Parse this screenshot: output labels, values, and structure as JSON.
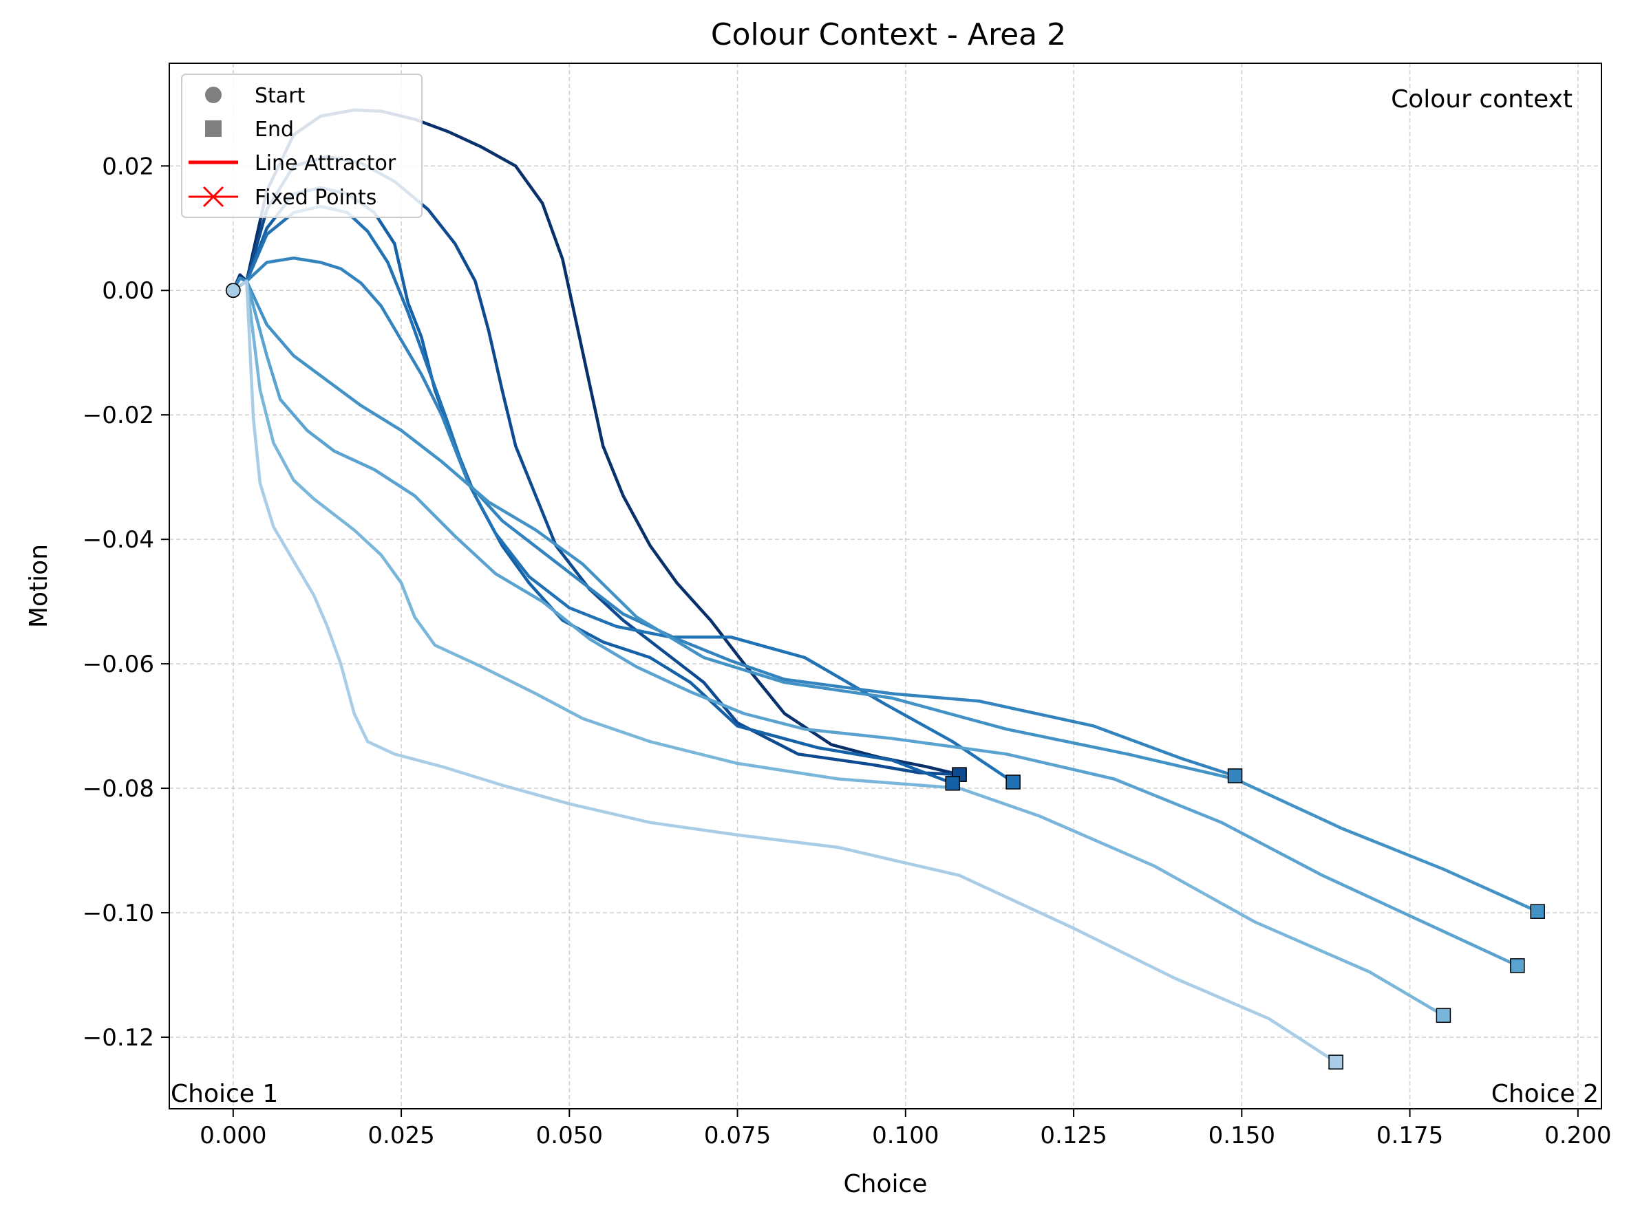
{
  "chart_data": {
    "type": "line",
    "title": "Colour Context - Area 2",
    "xlabel": "Choice",
    "ylabel": "Motion",
    "xlim": [
      -0.0095,
      0.2035
    ],
    "ylim": [
      -0.1315,
      0.0365
    ],
    "xticks": [
      0.0,
      0.025,
      0.05,
      0.075,
      0.1,
      0.125,
      0.15,
      0.175,
      0.2
    ],
    "xtick_labels": [
      "0.000",
      "0.025",
      "0.050",
      "0.075",
      "0.100",
      "0.125",
      "0.150",
      "0.175",
      "0.200"
    ],
    "yticks": [
      0.02,
      0.0,
      -0.02,
      -0.04,
      -0.06,
      -0.08,
      -0.1,
      -0.12
    ],
    "ytick_labels": [
      "0.02",
      "0.00",
      "−0.02",
      "−0.04",
      "−0.06",
      "−0.08",
      "−0.10",
      "−0.12"
    ],
    "grid": true,
    "legend": {
      "placement": "upper-left",
      "entries": [
        {
          "label": "Start",
          "marker": "circle",
          "color": "#808080"
        },
        {
          "label": "End",
          "marker": "square",
          "color": "#808080"
        },
        {
          "label": "Line Attractor",
          "marker": "line",
          "color": "#ff0000"
        },
        {
          "label": "Fixed Points",
          "marker": "x-line",
          "color": "#ff0000"
        }
      ]
    },
    "annotations": [
      {
        "text": "Colour context",
        "position": "top-right"
      },
      {
        "text": "Choice 1",
        "position": "bottom-left"
      },
      {
        "text": "Choice 2",
        "position": "bottom-right"
      }
    ],
    "series": [
      {
        "color": "#08306b",
        "points": [
          [
            0,
            0
          ],
          [
            0.001,
            0.0025
          ],
          [
            0.002,
            0.0015
          ],
          [
            0.005,
            0.016
          ],
          [
            0.009,
            0.025
          ],
          [
            0.013,
            0.028
          ],
          [
            0.018,
            0.029
          ],
          [
            0.022,
            0.0288
          ],
          [
            0.027,
            0.0275
          ],
          [
            0.032,
            0.0255
          ],
          [
            0.037,
            0.023
          ],
          [
            0.042,
            0.02
          ],
          [
            0.046,
            0.014
          ],
          [
            0.049,
            0.005
          ],
          [
            0.051,
            -0.005
          ],
          [
            0.053,
            -0.015
          ],
          [
            0.055,
            -0.025
          ],
          [
            0.058,
            -0.033
          ],
          [
            0.062,
            -0.041
          ],
          [
            0.066,
            -0.047
          ],
          [
            0.071,
            -0.053
          ],
          [
            0.076,
            -0.06
          ],
          [
            0.082,
            -0.068
          ],
          [
            0.089,
            -0.073
          ],
          [
            0.096,
            -0.075
          ],
          [
            0.103,
            -0.0765
          ],
          [
            0.108,
            -0.0778
          ]
        ]
      },
      {
        "color": "#0d4a8f",
        "points": [
          [
            0,
            0
          ],
          [
            0.001,
            0.002
          ],
          [
            0.002,
            0.0015
          ],
          [
            0.005,
            0.013
          ],
          [
            0.009,
            0.02
          ],
          [
            0.014,
            0.0215
          ],
          [
            0.019,
            0.0205
          ],
          [
            0.024,
            0.0175
          ],
          [
            0.029,
            0.013
          ],
          [
            0.033,
            0.0075
          ],
          [
            0.036,
            0.0015
          ],
          [
            0.038,
            -0.0065
          ],
          [
            0.04,
            -0.016
          ],
          [
            0.042,
            -0.025
          ],
          [
            0.045,
            -0.033
          ],
          [
            0.048,
            -0.041
          ],
          [
            0.053,
            -0.048
          ],
          [
            0.058,
            -0.053
          ],
          [
            0.064,
            -0.058
          ],
          [
            0.07,
            -0.063
          ],
          [
            0.075,
            -0.0695
          ],
          [
            0.084,
            -0.0745
          ],
          [
            0.095,
            -0.0762
          ],
          [
            0.102,
            -0.0775
          ],
          [
            0.108,
            -0.0778
          ]
        ]
      },
      {
        "color": "#1561a8",
        "points": [
          [
            0,
            0
          ],
          [
            0.001,
            0.002
          ],
          [
            0.002,
            0.0015
          ],
          [
            0.005,
            0.01
          ],
          [
            0.009,
            0.0155
          ],
          [
            0.013,
            0.0165
          ],
          [
            0.017,
            0.0155
          ],
          [
            0.021,
            0.0125
          ],
          [
            0.024,
            0.0075
          ],
          [
            0.026,
            -0.002
          ],
          [
            0.028,
            -0.0075
          ],
          [
            0.03,
            -0.016
          ],
          [
            0.033,
            -0.025
          ],
          [
            0.036,
            -0.033
          ],
          [
            0.04,
            -0.041
          ],
          [
            0.044,
            -0.047
          ],
          [
            0.049,
            -0.053
          ],
          [
            0.055,
            -0.0565
          ],
          [
            0.062,
            -0.059
          ],
          [
            0.068,
            -0.063
          ],
          [
            0.075,
            -0.07
          ],
          [
            0.087,
            -0.0735
          ],
          [
            0.098,
            -0.0755
          ],
          [
            0.107,
            -0.0792
          ]
        ]
      },
      {
        "color": "#2171b5",
        "points": [
          [
            0,
            0
          ],
          [
            0.001,
            0.002
          ],
          [
            0.002,
            0.0015
          ],
          [
            0.005,
            0.009
          ],
          [
            0.009,
            0.0125
          ],
          [
            0.013,
            0.0135
          ],
          [
            0.017,
            0.0125
          ],
          [
            0.02,
            0.0095
          ],
          [
            0.023,
            0.0045
          ],
          [
            0.026,
            -0.0035
          ],
          [
            0.029,
            -0.0125
          ],
          [
            0.032,
            -0.0215
          ],
          [
            0.035,
            -0.031
          ],
          [
            0.039,
            -0.039
          ],
          [
            0.044,
            -0.046
          ],
          [
            0.05,
            -0.051
          ],
          [
            0.057,
            -0.054
          ],
          [
            0.065,
            -0.0557
          ],
          [
            0.074,
            -0.0557
          ],
          [
            0.085,
            -0.059
          ],
          [
            0.097,
            -0.0665
          ],
          [
            0.107,
            -0.0725
          ],
          [
            0.116,
            -0.079
          ]
        ]
      },
      {
        "color": "#3383be",
        "points": [
          [
            0,
            0
          ],
          [
            0.001,
            0.002
          ],
          [
            0.002,
            0.0015
          ],
          [
            0.005,
            0.0045
          ],
          [
            0.009,
            0.0052
          ],
          [
            0.013,
            0.0045
          ],
          [
            0.016,
            0.0035
          ],
          [
            0.019,
            0.0012
          ],
          [
            0.022,
            -0.0025
          ],
          [
            0.025,
            -0.008
          ],
          [
            0.028,
            -0.0135
          ],
          [
            0.031,
            -0.02
          ],
          [
            0.035,
            -0.031
          ],
          [
            0.04,
            -0.037
          ],
          [
            0.046,
            -0.042
          ],
          [
            0.052,
            -0.047
          ],
          [
            0.058,
            -0.052
          ],
          [
            0.066,
            -0.056
          ],
          [
            0.074,
            -0.0595
          ],
          [
            0.082,
            -0.0625
          ],
          [
            0.098,
            -0.0648
          ],
          [
            0.111,
            -0.066
          ],
          [
            0.128,
            -0.07
          ],
          [
            0.141,
            -0.0752
          ],
          [
            0.149,
            -0.078
          ]
        ]
      },
      {
        "color": "#4292c6",
        "points": [
          [
            0,
            0
          ],
          [
            0.002,
            0.0015
          ],
          [
            0.005,
            -0.0055
          ],
          [
            0.009,
            -0.0105
          ],
          [
            0.014,
            -0.0145
          ],
          [
            0.019,
            -0.0185
          ],
          [
            0.025,
            -0.0225
          ],
          [
            0.031,
            -0.0275
          ],
          [
            0.038,
            -0.034
          ],
          [
            0.045,
            -0.0385
          ],
          [
            0.052,
            -0.044
          ],
          [
            0.06,
            -0.0525
          ],
          [
            0.07,
            -0.059
          ],
          [
            0.082,
            -0.063
          ],
          [
            0.098,
            -0.0655
          ],
          [
            0.115,
            -0.0705
          ],
          [
            0.133,
            -0.0745
          ],
          [
            0.149,
            -0.0785
          ],
          [
            0.165,
            -0.0865
          ],
          [
            0.18,
            -0.093
          ],
          [
            0.194,
            -0.0998
          ]
        ]
      },
      {
        "color": "#5aa2cf",
        "points": [
          [
            0,
            0
          ],
          [
            0.002,
            0.0015
          ],
          [
            0.005,
            -0.0105
          ],
          [
            0.007,
            -0.0175
          ],
          [
            0.011,
            -0.0225
          ],
          [
            0.015,
            -0.0258
          ],
          [
            0.021,
            -0.0288
          ],
          [
            0.027,
            -0.033
          ],
          [
            0.033,
            -0.0395
          ],
          [
            0.039,
            -0.0455
          ],
          [
            0.046,
            -0.05
          ],
          [
            0.053,
            -0.056
          ],
          [
            0.06,
            -0.0605
          ],
          [
            0.068,
            -0.0645
          ],
          [
            0.076,
            -0.068
          ],
          [
            0.085,
            -0.0705
          ],
          [
            0.098,
            -0.072
          ],
          [
            0.115,
            -0.0745
          ],
          [
            0.131,
            -0.0785
          ],
          [
            0.147,
            -0.0855
          ],
          [
            0.162,
            -0.094
          ],
          [
            0.178,
            -0.102
          ],
          [
            0.191,
            -0.1085
          ]
        ]
      },
      {
        "color": "#7ab6d9",
        "points": [
          [
            0,
            0
          ],
          [
            0.002,
            0.0015
          ],
          [
            0.004,
            -0.016
          ],
          [
            0.006,
            -0.0245
          ],
          [
            0.009,
            -0.0305
          ],
          [
            0.012,
            -0.0335
          ],
          [
            0.018,
            -0.0385
          ],
          [
            0.022,
            -0.0425
          ],
          [
            0.025,
            -0.047
          ],
          [
            0.027,
            -0.0525
          ],
          [
            0.03,
            -0.057
          ],
          [
            0.037,
            -0.0605
          ],
          [
            0.045,
            -0.0648
          ],
          [
            0.052,
            -0.0688
          ],
          [
            0.062,
            -0.0725
          ],
          [
            0.075,
            -0.076
          ],
          [
            0.09,
            -0.0785
          ],
          [
            0.108,
            -0.08
          ],
          [
            0.12,
            -0.0845
          ],
          [
            0.137,
            -0.0925
          ],
          [
            0.152,
            -0.1015
          ],
          [
            0.169,
            -0.1095
          ],
          [
            0.18,
            -0.1165
          ]
        ]
      },
      {
        "color": "#a9cde6",
        "points": [
          [
            0,
            0
          ],
          [
            0.002,
            0.0015
          ],
          [
            0.003,
            -0.0205
          ],
          [
            0.004,
            -0.031
          ],
          [
            0.006,
            -0.038
          ],
          [
            0.009,
            -0.0435
          ],
          [
            0.012,
            -0.049
          ],
          [
            0.014,
            -0.054
          ],
          [
            0.016,
            -0.06
          ],
          [
            0.018,
            -0.068
          ],
          [
            0.02,
            -0.0725
          ],
          [
            0.024,
            -0.0745
          ],
          [
            0.031,
            -0.0765
          ],
          [
            0.04,
            -0.0795
          ],
          [
            0.05,
            -0.0825
          ],
          [
            0.062,
            -0.0855
          ],
          [
            0.075,
            -0.0875
          ],
          [
            0.09,
            -0.0895
          ],
          [
            0.108,
            -0.094
          ],
          [
            0.125,
            -0.1025
          ],
          [
            0.14,
            -0.1105
          ],
          [
            0.154,
            -0.117
          ],
          [
            0.164,
            -0.124
          ]
        ]
      }
    ]
  }
}
